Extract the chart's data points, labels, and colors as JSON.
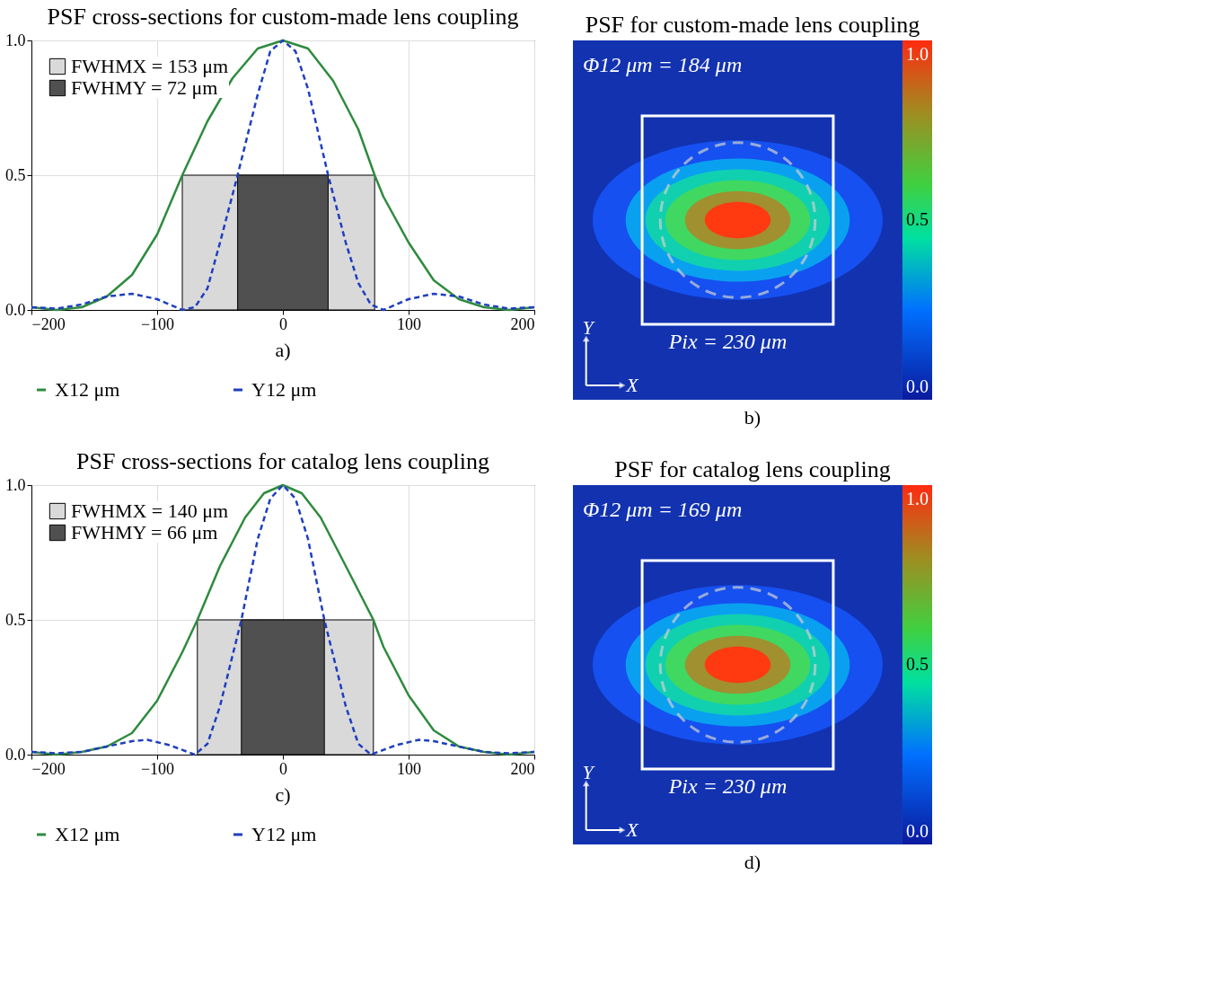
{
  "chart_data": [
    {
      "type": "line",
      "title": "PSF cross-sections for custom-made lens coupling",
      "xlim": [
        -200,
        200
      ],
      "xticks": [
        -200,
        -100,
        0,
        100,
        200
      ],
      "ylim": [
        0,
        1
      ],
      "yticks": [
        {
          "value": 0,
          "label": "0.0"
        },
        {
          "value": 0.5,
          "label": "0.5"
        },
        {
          "value": 1,
          "label": "1.0"
        }
      ],
      "grid": true,
      "legend": "bottom",
      "series": [
        {
          "type": "area",
          "name": "FWHMX = 153 μm",
          "color": "#d9d9d9",
          "x": [
            -80,
            73
          ],
          "values": [
            0.5,
            0.5
          ]
        },
        {
          "type": "area",
          "name": "FWHMY = 72 μm",
          "color": "#505050",
          "x": [
            -36,
            36
          ],
          "values": [
            0.5,
            0.5
          ]
        },
        {
          "name": "X12 μm",
          "color": "#2e8b3e",
          "line_style": "solid",
          "x": [
            -200,
            -180,
            -160,
            -140,
            -120,
            -100,
            -80,
            -60,
            -40,
            -20,
            0,
            20,
            40,
            60,
            73,
            80,
            100,
            120,
            140,
            160,
            180,
            200
          ],
          "values": [
            0.01,
            0.0,
            0.01,
            0.05,
            0.13,
            0.28,
            0.5,
            0.7,
            0.86,
            0.97,
            1.0,
            0.97,
            0.85,
            0.67,
            0.5,
            0.42,
            0.25,
            0.11,
            0.04,
            0.01,
            0.0,
            0.01
          ]
        },
        {
          "name": "Y12 μm",
          "color": "#1f3fbf",
          "line_style": "dashed",
          "x": [
            -200,
            -180,
            -160,
            -140,
            -120,
            -100,
            -80,
            -70,
            -60,
            -50,
            -36,
            -20,
            -10,
            0,
            10,
            20,
            36,
            50,
            60,
            70,
            80,
            100,
            120,
            140,
            160,
            180,
            200
          ],
          "values": [
            0.01,
            0.005,
            0.02,
            0.05,
            0.06,
            0.04,
            0.0,
            0.01,
            0.08,
            0.25,
            0.5,
            0.8,
            0.96,
            1.0,
            0.96,
            0.82,
            0.5,
            0.25,
            0.1,
            0.02,
            0.0,
            0.04,
            0.06,
            0.05,
            0.02,
            0.005,
            0.01
          ]
        }
      ],
      "annotations": [
        "a)"
      ]
    },
    {
      "type": "other",
      "title": "PSF for custom-made lens coupling",
      "annotations": [
        "Φ12 μm = 184 μm",
        "Pix = 230 μm",
        "Y",
        "X",
        "1.0",
        "0.5",
        "0.0",
        "b)"
      ]
    },
    {
      "type": "line",
      "title": "PSF cross-sections for catalog lens coupling",
      "xlim": [
        -200,
        200
      ],
      "xticks": [
        -200,
        -100,
        0,
        100,
        200
      ],
      "ylim": [
        0,
        1
      ],
      "yticks": [
        {
          "value": 0,
          "label": "0.0"
        },
        {
          "value": 0.5,
          "label": "0.5"
        },
        {
          "value": 1,
          "label": "1.0"
        }
      ],
      "grid": true,
      "legend": "bottom",
      "series": [
        {
          "type": "area",
          "name": "FWHMX = 140 μm",
          "color": "#d9d9d9",
          "x": [
            -68,
            72
          ],
          "values": [
            0.5,
            0.5
          ]
        },
        {
          "type": "area",
          "name": "FWHMY = 66 μm",
          "color": "#505050",
          "x": [
            -33,
            33
          ],
          "values": [
            0.5,
            0.5
          ]
        },
        {
          "name": "X12 μm",
          "color": "#2e8b3e",
          "line_style": "solid",
          "x": [
            -200,
            -180,
            -160,
            -140,
            -120,
            -100,
            -80,
            -68,
            -50,
            -30,
            -15,
            0,
            15,
            30,
            50,
            72,
            80,
            100,
            120,
            140,
            160,
            180,
            200
          ],
          "values": [
            0.01,
            0.0,
            0.01,
            0.03,
            0.08,
            0.2,
            0.38,
            0.5,
            0.7,
            0.88,
            0.97,
            1.0,
            0.97,
            0.88,
            0.7,
            0.5,
            0.4,
            0.22,
            0.09,
            0.03,
            0.01,
            0.0,
            0.01
          ]
        },
        {
          "name": "Y12 μm",
          "color": "#1f3fbf",
          "line_style": "dashed",
          "x": [
            -200,
            -180,
            -160,
            -140,
            -120,
            -108,
            -90,
            -70,
            -60,
            -50,
            -33,
            -20,
            -10,
            0,
            10,
            20,
            33,
            50,
            60,
            70,
            90,
            108,
            120,
            140,
            160,
            180,
            200
          ],
          "values": [
            0.01,
            0.005,
            0.01,
            0.03,
            0.05,
            0.055,
            0.035,
            0.0,
            0.04,
            0.18,
            0.5,
            0.8,
            0.95,
            1.0,
            0.95,
            0.8,
            0.5,
            0.18,
            0.04,
            0.0,
            0.035,
            0.055,
            0.05,
            0.03,
            0.01,
            0.005,
            0.01
          ]
        }
      ],
      "annotations": [
        "c)"
      ]
    },
    {
      "type": "other",
      "title": "PSF for catalog lens coupling",
      "annotations": [
        "Φ12 μm = 169 μm",
        "Pix = 230 μm",
        "Y",
        "X",
        "1.0",
        "0.5",
        "0.0",
        "d)"
      ]
    }
  ]
}
